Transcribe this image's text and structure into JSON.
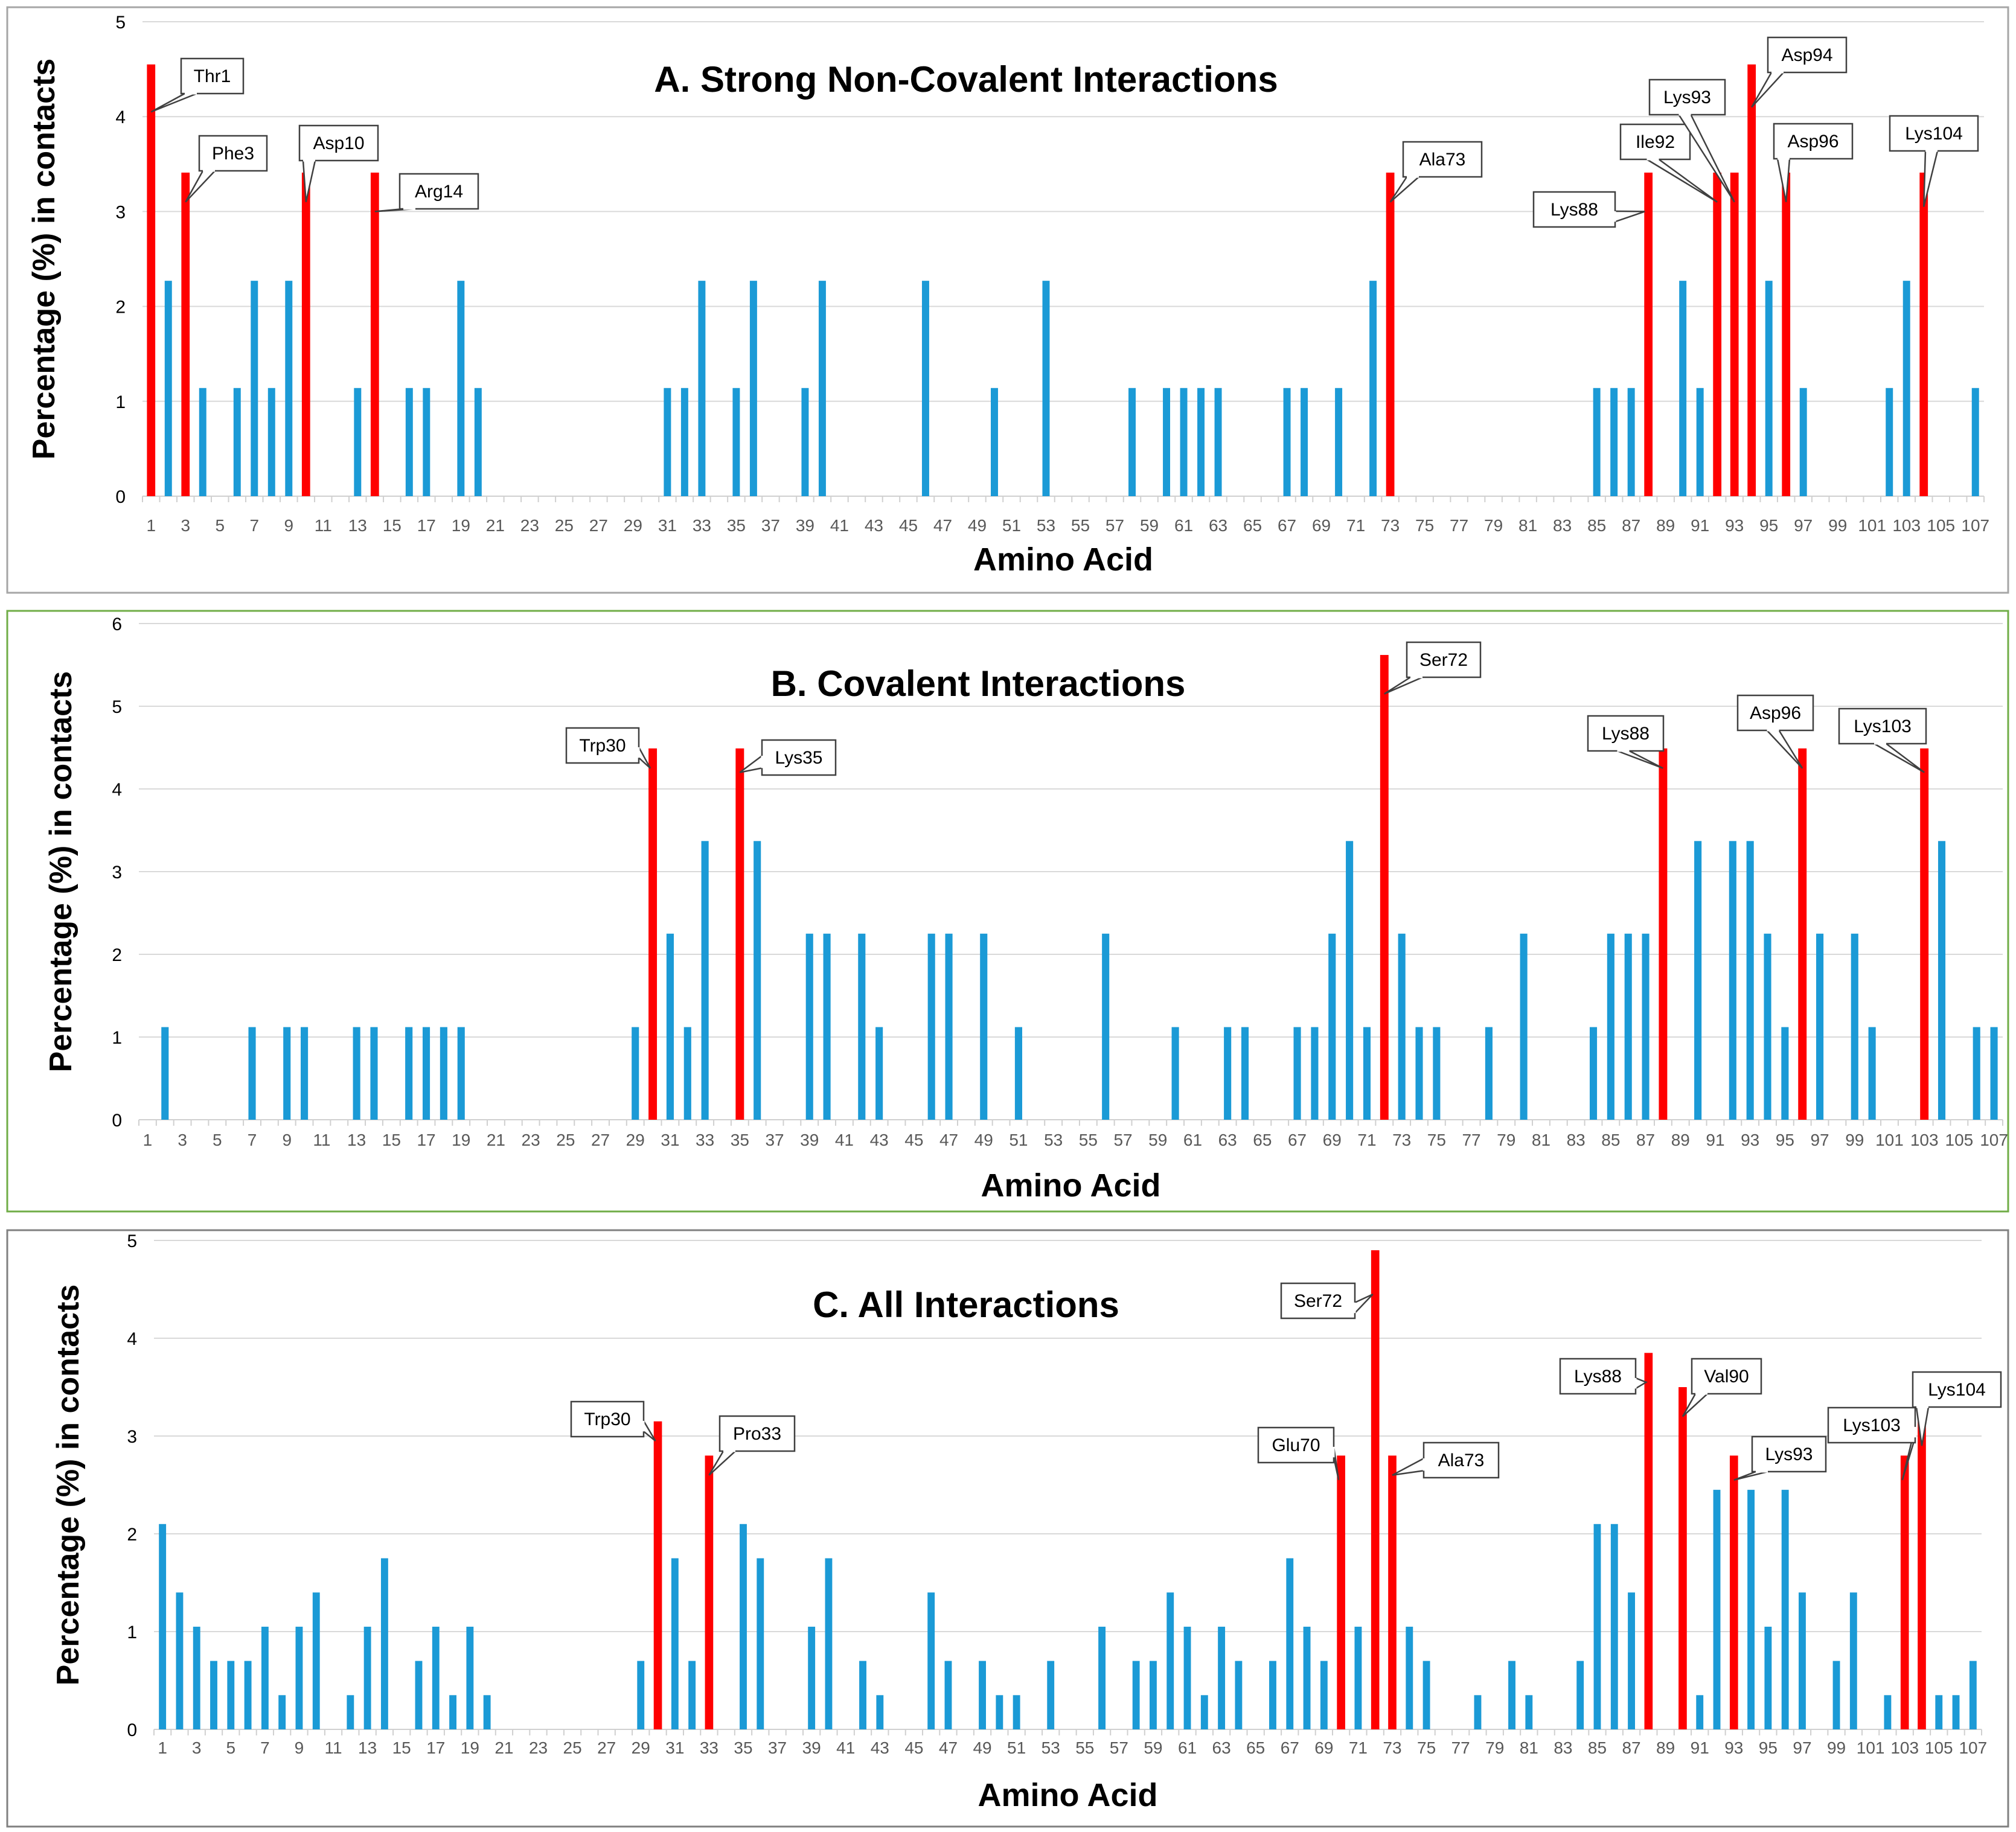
{
  "colors": {
    "normal": "#1b9ad6",
    "highlight": "#ff0000",
    "grid": "#d9d9d9",
    "frame_a": "#a6a6a6",
    "frame_b": "#70ad47",
    "frame_c": "#808080"
  },
  "chart_data": [
    {
      "id": "A",
      "type": "bar",
      "title": "A. Strong Non-Covalent Interactions",
      "xlabel": "Amino Acid",
      "ylabel": "Percentage (%) in contacts",
      "ylim": [
        0,
        5
      ],
      "yticks": [
        0,
        1,
        2,
        3,
        4,
        5
      ],
      "grid": true,
      "xtick_labels": [
        "1",
        "3",
        "5",
        "7",
        "9",
        "11",
        "13",
        "15",
        "17",
        "19",
        "21",
        "23",
        "25",
        "27",
        "29",
        "31",
        "33",
        "35",
        "37",
        "39",
        "41",
        "43",
        "45",
        "47",
        "49",
        "51",
        "53",
        "55",
        "57",
        "59",
        "61",
        "63",
        "65",
        "67",
        "69",
        "71",
        "73",
        "75",
        "77",
        "79",
        "81",
        "83",
        "85",
        "87",
        "89",
        "91",
        "93",
        "95",
        "97",
        "99",
        "101",
        "103",
        "105",
        "107"
      ],
      "categories": [
        1,
        2,
        3,
        4,
        5,
        6,
        7,
        8,
        9,
        10,
        11,
        12,
        13,
        14,
        15,
        16,
        17,
        18,
        19,
        20,
        21,
        22,
        23,
        24,
        25,
        26,
        27,
        28,
        29,
        30,
        31,
        32,
        33,
        34,
        35,
        36,
        37,
        38,
        39,
        40,
        41,
        42,
        43,
        44,
        45,
        46,
        47,
        48,
        49,
        50,
        51,
        52,
        53,
        54,
        55,
        56,
        57,
        58,
        59,
        60,
        61,
        62,
        63,
        64,
        65,
        66,
        67,
        68,
        69,
        70,
        71,
        72,
        73,
        74,
        75,
        76,
        77,
        78,
        79,
        80,
        81,
        82,
        83,
        84,
        85,
        86,
        87,
        88,
        89,
        90,
        91,
        92,
        93,
        94,
        95,
        96,
        97,
        98,
        99,
        100,
        101,
        102,
        103,
        104,
        105,
        106,
        107
      ],
      "values": [
        4.55,
        2.27,
        3.41,
        1.14,
        0,
        1.14,
        2.27,
        1.14,
        2.27,
        3.41,
        0,
        0,
        1.14,
        3.41,
        0,
        1.14,
        1.14,
        0,
        2.27,
        1.14,
        0,
        0,
        0,
        0,
        0,
        0,
        0,
        0,
        0,
        0,
        1.14,
        1.14,
        2.27,
        0,
        1.14,
        2.27,
        0,
        0,
        1.14,
        2.27,
        0,
        0,
        0,
        0,
        0,
        2.27,
        0,
        0,
        0,
        1.14,
        0,
        0,
        2.27,
        0,
        0,
        0,
        0,
        1.14,
        0,
        1.14,
        1.14,
        1.14,
        1.14,
        0,
        0,
        0,
        1.14,
        1.14,
        0,
        1.14,
        0,
        2.27,
        3.41,
        0,
        0,
        0,
        0,
        0,
        0,
        0,
        0,
        0,
        0,
        0,
        1.14,
        1.14,
        1.14,
        3.41,
        0,
        2.27,
        1.14,
        3.41,
        3.41,
        4.55,
        2.27,
        3.41,
        1.14,
        0,
        0,
        0,
        0,
        1.14,
        2.27,
        3.41,
        0,
        0,
        1.14
      ],
      "highlighted": [
        1,
        3,
        10,
        14,
        73,
        88,
        92,
        93,
        94,
        96,
        104
      ],
      "annotations": [
        {
          "residue": 1,
          "label": "Thr1"
        },
        {
          "residue": 3,
          "label": "Phe3"
        },
        {
          "residue": 10,
          "label": "Asp10"
        },
        {
          "residue": 14,
          "label": "Arg14"
        },
        {
          "residue": 73,
          "label": "Ala73"
        },
        {
          "residue": 88,
          "label": "Lys88"
        },
        {
          "residue": 92,
          "label": "Ile92"
        },
        {
          "residue": 93,
          "label": "Lys93"
        },
        {
          "residue": 94,
          "label": "Asp94"
        },
        {
          "residue": 96,
          "label": "Asp96"
        },
        {
          "residue": 104,
          "label": "Lys104"
        }
      ]
    },
    {
      "id": "B",
      "type": "bar",
      "title": "B. Covalent Interactions",
      "xlabel": "Amino Acid",
      "ylabel": "Percentage (%) in contacts",
      "ylim": [
        0,
        6
      ],
      "yticks": [
        0,
        1,
        2,
        3,
        4,
        5,
        6
      ],
      "grid": true,
      "xtick_labels": [
        "1",
        "3",
        "5",
        "7",
        "9",
        "11",
        "13",
        "15",
        "17",
        "19",
        "21",
        "23",
        "25",
        "27",
        "29",
        "31",
        "33",
        "35",
        "37",
        "39",
        "41",
        "43",
        "45",
        "47",
        "49",
        "51",
        "53",
        "55",
        "57",
        "59",
        "61",
        "63",
        "65",
        "67",
        "69",
        "71",
        "73",
        "75",
        "77",
        "79",
        "81",
        "83",
        "85",
        "87",
        "89",
        "91",
        "93",
        "95",
        "97",
        "99",
        "101",
        "103",
        "105",
        "107"
      ],
      "categories": [
        1,
        2,
        3,
        4,
        5,
        6,
        7,
        8,
        9,
        10,
        11,
        12,
        13,
        14,
        15,
        16,
        17,
        18,
        19,
        20,
        21,
        22,
        23,
        24,
        25,
        26,
        27,
        28,
        29,
        30,
        31,
        32,
        33,
        34,
        35,
        36,
        37,
        38,
        39,
        40,
        41,
        42,
        43,
        44,
        45,
        46,
        47,
        48,
        49,
        50,
        51,
        52,
        53,
        54,
        55,
        56,
        57,
        58,
        59,
        60,
        61,
        62,
        63,
        64,
        65,
        66,
        67,
        68,
        69,
        70,
        71,
        72,
        73,
        74,
        75,
        76,
        77,
        78,
        79,
        80,
        81,
        82,
        83,
        84,
        85,
        86,
        87,
        88,
        89,
        90,
        91,
        92,
        93,
        94,
        95,
        96,
        97,
        98,
        99,
        100,
        101,
        102,
        103,
        104,
        105,
        106,
        107
      ],
      "values": [
        0,
        1.12,
        0,
        0,
        0,
        0,
        1.12,
        0,
        1.12,
        1.12,
        0,
        0,
        1.12,
        1.12,
        0,
        1.12,
        1.12,
        1.12,
        1.12,
        0,
        0,
        0,
        0,
        0,
        0,
        0,
        0,
        0,
        1.12,
        4.49,
        2.25,
        1.12,
        3.37,
        0,
        4.49,
        3.37,
        0,
        0,
        2.25,
        2.25,
        0,
        2.25,
        1.12,
        0,
        0,
        2.25,
        2.25,
        0,
        2.25,
        0,
        1.12,
        0,
        0,
        0,
        0,
        2.25,
        0,
        0,
        0,
        1.12,
        0,
        0,
        1.12,
        1.12,
        0,
        0,
        1.12,
        1.12,
        2.25,
        3.37,
        1.12,
        5.62,
        2.25,
        1.12,
        1.12,
        0,
        0,
        1.12,
        0,
        2.25,
        0,
        0,
        0,
        1.12,
        2.25,
        2.25,
        2.25,
        4.49,
        0,
        3.37,
        0,
        3.37,
        3.37,
        2.25,
        1.12,
        4.49,
        2.25,
        0,
        2.25,
        1.12,
        0,
        0,
        4.49,
        3.37,
        0,
        1.12,
        1.12
      ],
      "highlighted": [
        30,
        35,
        72,
        88,
        96,
        103
      ],
      "annotations": [
        {
          "residue": 30,
          "label": "Trp30"
        },
        {
          "residue": 35,
          "label": "Lys35"
        },
        {
          "residue": 72,
          "label": "Ser72"
        },
        {
          "residue": 88,
          "label": "Lys88"
        },
        {
          "residue": 96,
          "label": "Asp96"
        },
        {
          "residue": 103,
          "label": "Lys103"
        }
      ]
    },
    {
      "id": "C",
      "type": "bar",
      "title": "C. All Interactions",
      "xlabel": "Amino Acid",
      "ylabel": "Percentage (%) in contacts",
      "ylim": [
        0,
        5
      ],
      "yticks": [
        0,
        1,
        2,
        3,
        4,
        5
      ],
      "grid": true,
      "xtick_labels": [
        "1",
        "3",
        "5",
        "7",
        "9",
        "11",
        "13",
        "15",
        "17",
        "19",
        "21",
        "23",
        "25",
        "27",
        "29",
        "31",
        "33",
        "35",
        "37",
        "39",
        "41",
        "43",
        "45",
        "47",
        "49",
        "51",
        "53",
        "55",
        "57",
        "59",
        "61",
        "63",
        "65",
        "67",
        "69",
        "71",
        "73",
        "75",
        "77",
        "79",
        "81",
        "83",
        "85",
        "87",
        "89",
        "91",
        "93",
        "95",
        "97",
        "99",
        "101",
        "103",
        "105",
        "107"
      ],
      "categories": [
        1,
        2,
        3,
        4,
        5,
        6,
        7,
        8,
        9,
        10,
        11,
        12,
        13,
        14,
        15,
        16,
        17,
        18,
        19,
        20,
        21,
        22,
        23,
        24,
        25,
        26,
        27,
        28,
        29,
        30,
        31,
        32,
        33,
        34,
        35,
        36,
        37,
        38,
        39,
        40,
        41,
        42,
        43,
        44,
        45,
        46,
        47,
        48,
        49,
        50,
        51,
        52,
        53,
        54,
        55,
        56,
        57,
        58,
        59,
        60,
        61,
        62,
        63,
        64,
        65,
        66,
        67,
        68,
        69,
        70,
        71,
        72,
        73,
        74,
        75,
        76,
        77,
        78,
        79,
        80,
        81,
        82,
        83,
        84,
        85,
        86,
        87,
        88,
        89,
        90,
        91,
        92,
        93,
        94,
        95,
        96,
        97,
        98,
        99,
        100,
        101,
        102,
        103,
        104,
        105,
        106,
        107
      ],
      "values": [
        2.1,
        1.4,
        1.05,
        0.7,
        0.7,
        0.7,
        1.05,
        0.35,
        1.05,
        1.4,
        0,
        0.35,
        1.05,
        1.75,
        0,
        0.7,
        1.05,
        0.35,
        1.05,
        0.35,
        0,
        0,
        0,
        0,
        0,
        0,
        0,
        0,
        0.7,
        3.15,
        1.75,
        0.7,
        2.8,
        0,
        2.1,
        1.75,
        0,
        0,
        1.05,
        1.75,
        0,
        0.7,
        0.35,
        0,
        0,
        1.4,
        0.7,
        0,
        0.7,
        0.35,
        0.35,
        0,
        0.7,
        0,
        0,
        1.05,
        0,
        0.7,
        0.7,
        1.4,
        1.05,
        0.35,
        1.05,
        0.7,
        0,
        0.7,
        1.75,
        1.05,
        0.7,
        2.8,
        1.05,
        4.9,
        2.8,
        1.05,
        0.7,
        0,
        0,
        0.35,
        0,
        0.7,
        0.35,
        0,
        0,
        0.7,
        2.1,
        2.1,
        1.4,
        3.85,
        0,
        3.5,
        0.35,
        2.45,
        2.8,
        2.45,
        1.05,
        2.45,
        1.4,
        0,
        0.7,
        1.4,
        0,
        0.35,
        2.8,
        3.15,
        0.35,
        0.35,
        0.7
      ],
      "highlighted": [
        30,
        33,
        70,
        72,
        73,
        88,
        90,
        93,
        103,
        104
      ],
      "annotations": [
        {
          "residue": 30,
          "label": "Trp30"
        },
        {
          "residue": 33,
          "label": "Pro33"
        },
        {
          "residue": 70,
          "label": "Glu70"
        },
        {
          "residue": 72,
          "label": "Ser72"
        },
        {
          "residue": 73,
          "label": "Ala73"
        },
        {
          "residue": 88,
          "label": "Lys88"
        },
        {
          "residue": 90,
          "label": "Val90"
        },
        {
          "residue": 93,
          "label": "Lys93"
        },
        {
          "residue": 103,
          "label": "Lys103"
        },
        {
          "residue": 104,
          "label": "Lys104"
        }
      ]
    }
  ]
}
